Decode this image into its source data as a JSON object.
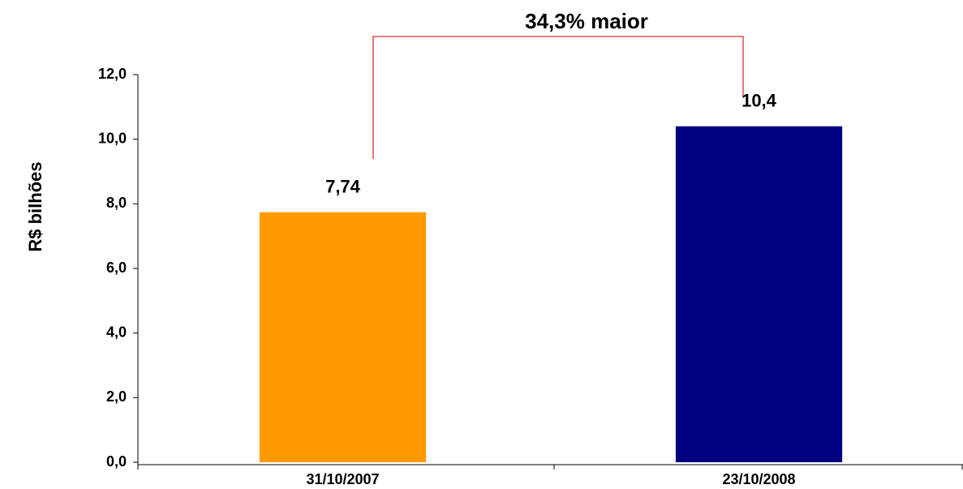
{
  "chart_data": {
    "type": "bar",
    "annotation": "34,3% maior",
    "y_label": "R$ bilhões",
    "categories": [
      "31/10/2007",
      "23/10/2008"
    ],
    "values": [
      7.74,
      10.4
    ],
    "value_labels": [
      "7,74",
      "10,4"
    ],
    "colors": [
      "#ff9900",
      "#000080"
    ],
    "ylim": [
      0,
      12
    ],
    "yticks": [
      {
        "value": 0,
        "label": "0,0"
      },
      {
        "value": 2,
        "label": "2,0"
      },
      {
        "value": 4,
        "label": "4,0"
      },
      {
        "value": 6,
        "label": "6,0"
      },
      {
        "value": 8,
        "label": "8,0"
      },
      {
        "value": 10,
        "label": "10,0"
      },
      {
        "value": 12,
        "label": "12,0"
      }
    ],
    "grid": false
  }
}
